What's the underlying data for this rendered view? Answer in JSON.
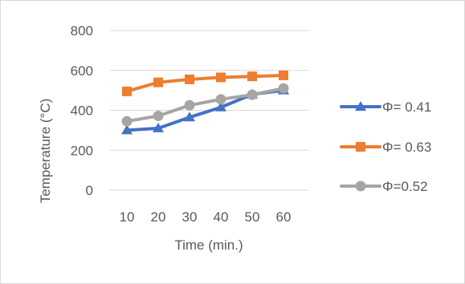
{
  "chart_data": {
    "type": "line",
    "title": "",
    "xlabel": "Time (min.)",
    "ylabel": "Temperature (°C)",
    "x": [
      10,
      20,
      30,
      40,
      50,
      60
    ],
    "ylim": [
      0,
      800
    ],
    "yticks": [
      0,
      200,
      400,
      600,
      800
    ],
    "grid": true,
    "legend": "right",
    "series": [
      {
        "name": "Φ= 0.41",
        "values": [
          300,
          310,
          365,
          415,
          480,
          500
        ],
        "color": "#4472c4",
        "marker": "triangle"
      },
      {
        "name": "Φ= 0.63",
        "values": [
          495,
          540,
          555,
          565,
          570,
          575
        ],
        "color": "#ed7d31",
        "marker": "square"
      },
      {
        "name": "Φ=0.52",
        "values": [
          345,
          372,
          425,
          455,
          478,
          510
        ],
        "color": "#a5a5a5",
        "marker": "circle"
      }
    ]
  }
}
